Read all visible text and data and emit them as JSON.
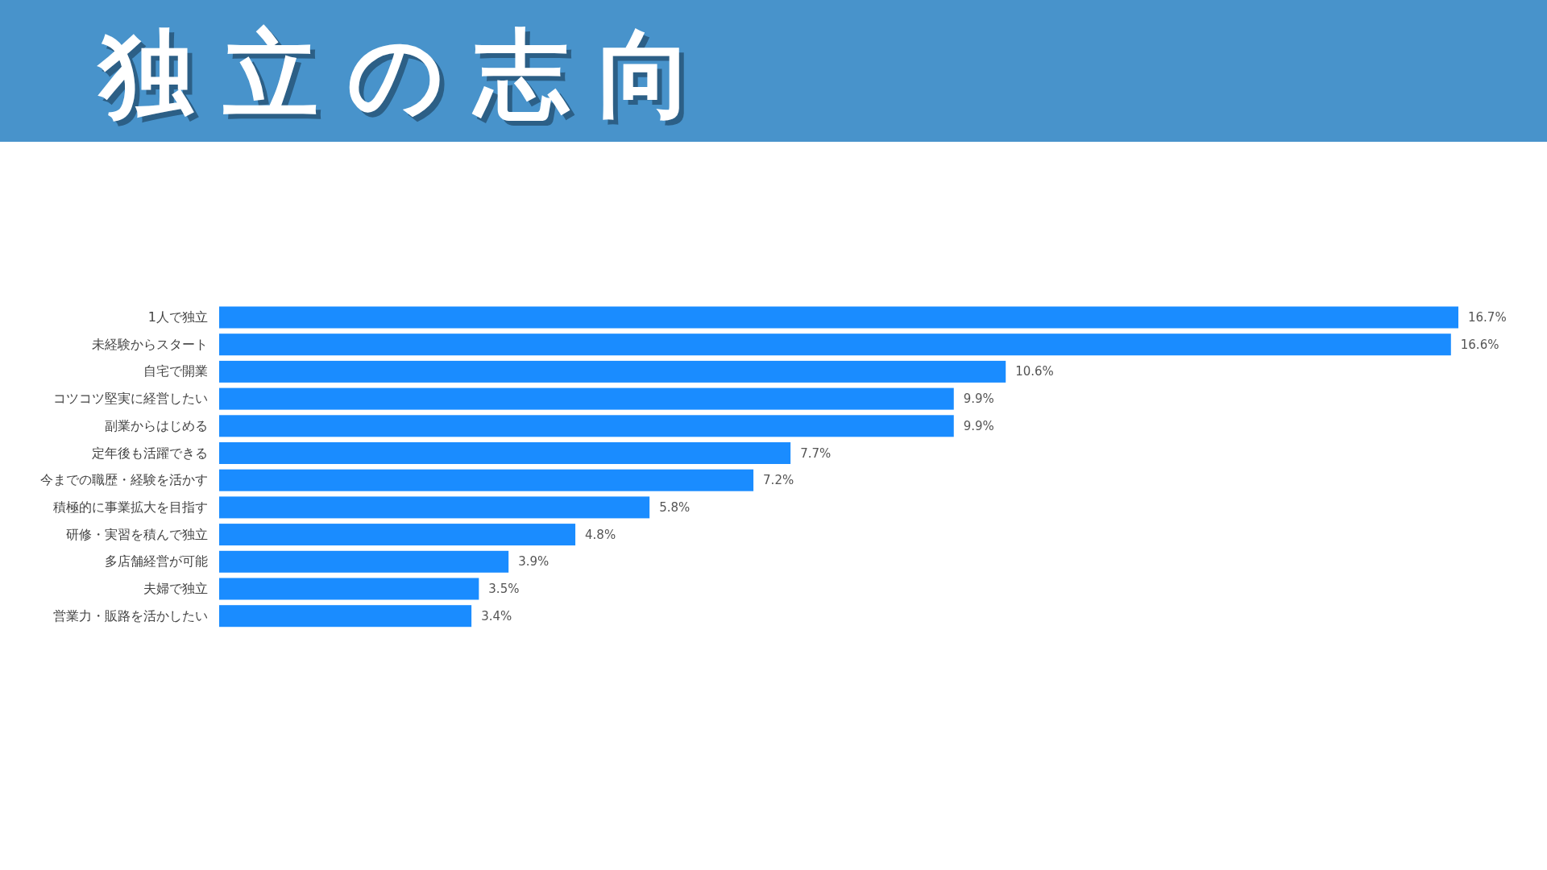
{
  "chart_data": {
    "type": "bar",
    "orientation": "horizontal",
    "title": "独立の志向",
    "categories": [
      "1人で独立",
      "未経験からスタート",
      "自宅で開業",
      "コツコツ堅実に経営したい",
      "副業からはじめる",
      "定年後も活躍できる",
      "今までの職歴・経験を活かす",
      "積極的に事業拡大を目指す",
      "研修・実習を積んで独立",
      "多店舗経営が可能",
      "夫婦で独立",
      "営業力・販路を活かしたい"
    ],
    "values": [
      16.7,
      16.6,
      10.6,
      9.9,
      9.9,
      7.7,
      7.2,
      5.8,
      4.8,
      3.9,
      3.5,
      3.4
    ],
    "value_labels": [
      "16.7%",
      "16.6%",
      "10.6%",
      "9.9%",
      "9.9%",
      "7.7%",
      "7.2%",
      "5.8%",
      "4.8%",
      "3.9%",
      "3.5%",
      "3.4%"
    ],
    "color": "#1a8cff"
  }
}
